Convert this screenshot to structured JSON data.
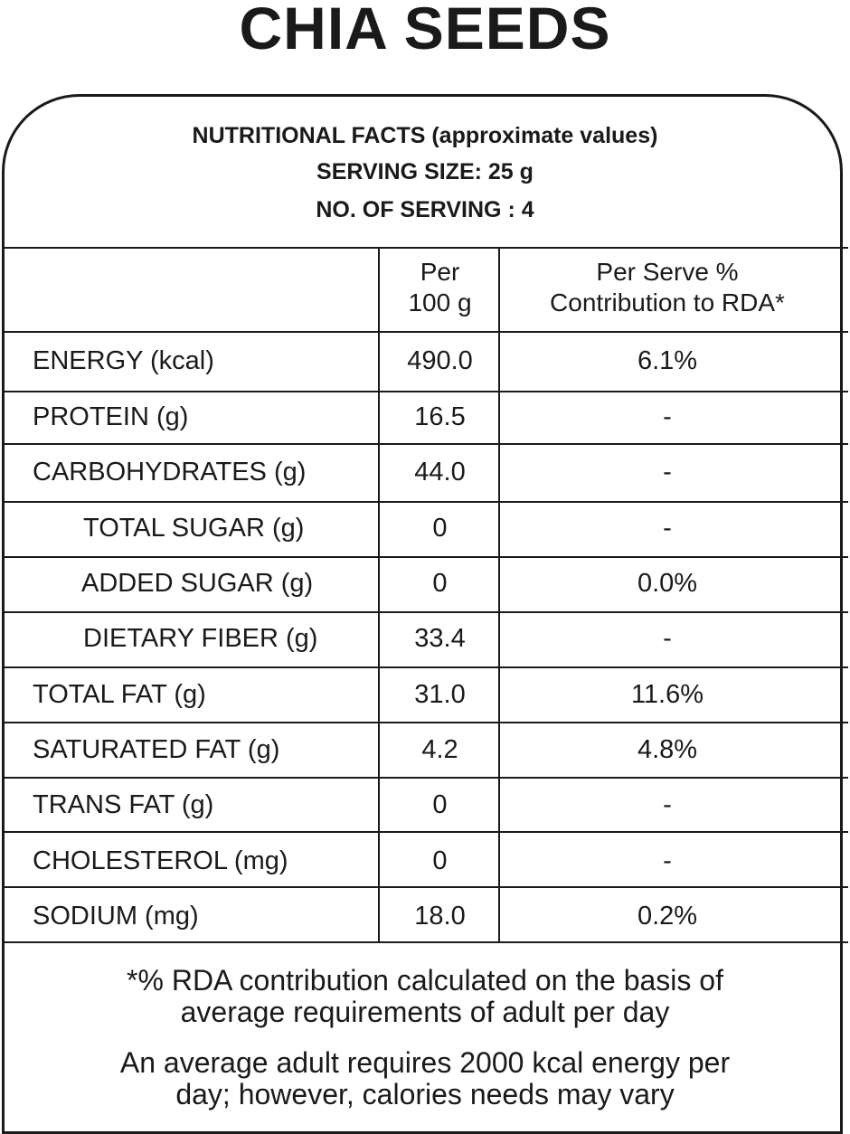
{
  "product_title": "CHIA SEEDS",
  "header": {
    "line1": "NUTRITIONAL FACTS (approximate values)",
    "line2": "SERVING SIZE: 25 g",
    "line3": "NO. OF SERVING : 4"
  },
  "table": {
    "col_per_line1": "Per",
    "col_per_line2": "100 g",
    "col_rda_line1": "Per Serve %",
    "col_rda_line2": "Contribution to RDA*",
    "rows": [
      {
        "label": "ENERGY (kcal)",
        "per100": "490.0",
        "rda": "6.1%"
      },
      {
        "label": "PROTEIN (g)",
        "per100": "16.5",
        "rda": "-"
      },
      {
        "label": "CARBOHYDRATES  (g)",
        "per100": "44.0",
        "rda": "-"
      },
      {
        "label": "TOTAL SUGAR  (g)",
        "per100": "0",
        "rda": "-"
      },
      {
        "label": "ADDED SUGAR (g)",
        "per100": "0",
        "rda": "0.0%"
      },
      {
        "label": "DIETARY FIBER (g)",
        "per100": "33.4",
        "rda": "-"
      },
      {
        "label": "TOTAL FAT (g)",
        "per100": "31.0",
        "rda": "11.6%"
      },
      {
        "label": "SATURATED FAT (g)",
        "per100": "4.2",
        "rda": "4.8%"
      },
      {
        "label": "TRANS FAT (g)",
        "per100": "0",
        "rda": "-"
      },
      {
        "label": "CHOLESTEROL (mg)",
        "per100": "0",
        "rda": "-"
      },
      {
        "label": "SODIUM (mg)",
        "per100": "18.0",
        "rda": "0.2%"
      }
    ]
  },
  "footnotes": {
    "note1_line1": "*% RDA contribution calculated on the basis of",
    "note1_line2": "average requirements of adult per day",
    "note2_line1": "An average adult requires 2000 kcal energy per",
    "note2_line2": "day; however, calories needs may vary"
  }
}
